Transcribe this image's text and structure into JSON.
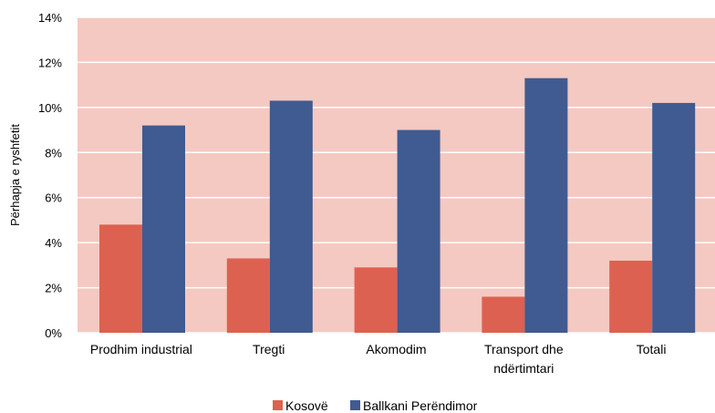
{
  "chart_data": {
    "type": "bar",
    "title": "",
    "xlabel": "",
    "ylabel": "Përhapja e ryshfetit",
    "ylim": [
      0,
      14
    ],
    "y_ticks": [
      "0%",
      "2%",
      "4%",
      "6%",
      "8%",
      "10%",
      "12%",
      "14%"
    ],
    "y_tick_values": [
      0,
      2,
      4,
      6,
      8,
      10,
      12,
      14
    ],
    "grid": true,
    "legend_position": "bottom",
    "background_color": "#f4c9c1",
    "categories": [
      [
        "Prodhim industrial"
      ],
      [
        "Tregti"
      ],
      [
        "Akomodim"
      ],
      [
        "Transport dhe",
        "ndërtimtari"
      ],
      [
        "Totali"
      ]
    ],
    "series": [
      {
        "name": "Kosovë",
        "color": "#dd6150",
        "values": [
          4.8,
          3.3,
          2.9,
          1.6,
          3.2
        ]
      },
      {
        "name": "Ballkani Perëndimor",
        "color": "#3f5b91",
        "values": [
          9.2,
          10.3,
          9.0,
          11.3,
          10.2
        ]
      }
    ]
  }
}
